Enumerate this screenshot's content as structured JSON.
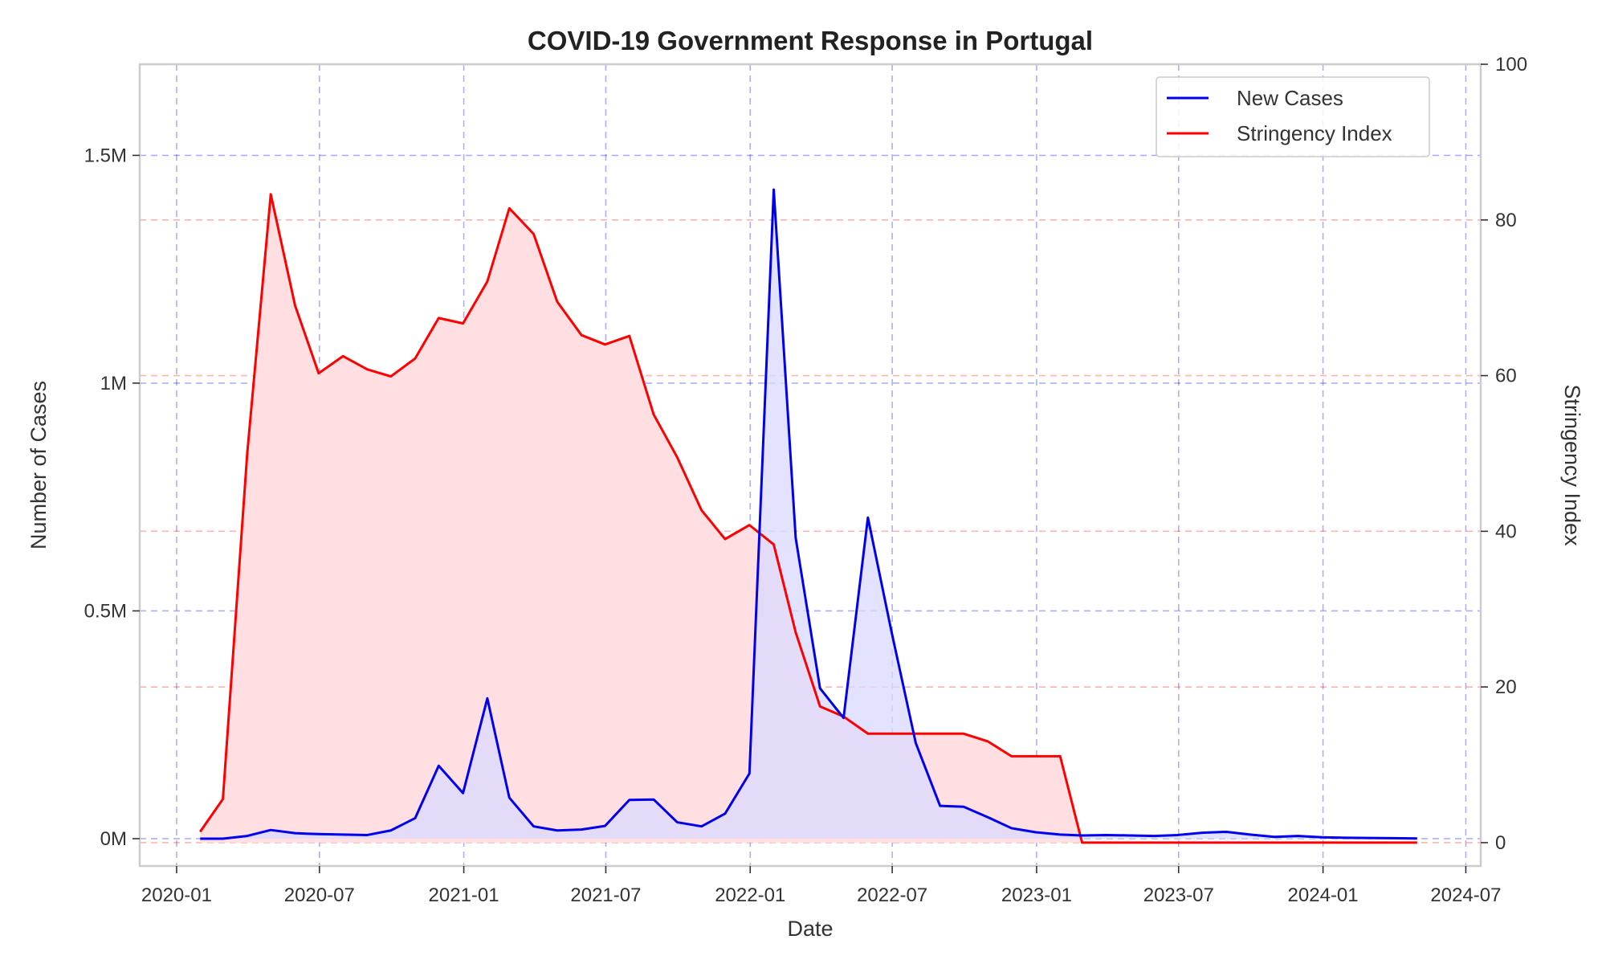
{
  "chart_data": {
    "type": "line",
    "title": "COVID-19 Government Response in Portugal",
    "xlabel": "Date",
    "ylabel": "Number of Cases",
    "y2label": "Stringency Index",
    "x_ticks": [
      "2020-01",
      "2020-07",
      "2021-01",
      "2021-07",
      "2022-01",
      "2022-07",
      "2023-01",
      "2023-07",
      "2024-01",
      "2024-07"
    ],
    "y_ticks": [
      "0M",
      "0.5M",
      "1M",
      "1.5M"
    ],
    "y_tick_values": [
      0,
      500000,
      1000000,
      1500000
    ],
    "y2_ticks": [
      "0",
      "20",
      "40",
      "60",
      "80",
      "100"
    ],
    "y2_tick_values": [
      0,
      20,
      40,
      60,
      80,
      100
    ],
    "xlim": [
      "2019-11-15",
      "2024-07-20"
    ],
    "ylim": [
      -60000,
      1700000
    ],
    "y2lim": [
      -3,
      100
    ],
    "grid": true,
    "legend": "top-right",
    "series": [
      {
        "name": "New Cases",
        "axis": "left",
        "color": "#0000ee",
        "fill": "#dadaff",
        "x": [
          "2020-01-31",
          "2020-02-29",
          "2020-03-31",
          "2020-04-30",
          "2020-05-31",
          "2020-06-30",
          "2020-07-31",
          "2020-08-31",
          "2020-09-30",
          "2020-10-31",
          "2020-11-30",
          "2020-12-31",
          "2021-01-31",
          "2021-02-28",
          "2021-03-31",
          "2021-04-30",
          "2021-05-31",
          "2021-06-30",
          "2021-07-31",
          "2021-08-31",
          "2021-09-30",
          "2021-10-31",
          "2021-11-30",
          "2021-12-31",
          "2022-01-31",
          "2022-02-28",
          "2022-03-31",
          "2022-04-30",
          "2022-05-31",
          "2022-06-30",
          "2022-07-31",
          "2022-08-31",
          "2022-09-30",
          "2022-10-31",
          "2022-11-30",
          "2022-12-31",
          "2023-01-31",
          "2023-02-28",
          "2023-03-31",
          "2023-04-30",
          "2023-05-31",
          "2023-06-30",
          "2023-07-31",
          "2023-08-31",
          "2023-09-30",
          "2023-10-31",
          "2023-11-30",
          "2023-12-31",
          "2024-01-31",
          "2024-02-29",
          "2024-03-31",
          "2024-04-30"
        ],
        "values": [
          0,
          0,
          6000,
          19000,
          12000,
          10000,
          9000,
          8000,
          18000,
          45000,
          160000,
          100000,
          308000,
          90000,
          27000,
          18000,
          20000,
          28000,
          85000,
          86000,
          36000,
          27000,
          55000,
          143000,
          1425000,
          660000,
          330000,
          265000,
          705000,
          455000,
          210000,
          72000,
          70000,
          47000,
          23000,
          14000,
          9000,
          7000,
          8000,
          7000,
          6000,
          8000,
          13000,
          15000,
          9000,
          4000,
          6000,
          3000,
          2000,
          1500,
          1000,
          500
        ]
      },
      {
        "name": "Stringency Index",
        "axis": "right",
        "color": "#ff0000",
        "fill": "#ffdfe1",
        "x": [
          "2020-01-31",
          "2020-02-29",
          "2020-03-31",
          "2020-04-30",
          "2020-05-31",
          "2020-06-30",
          "2020-07-31",
          "2020-08-31",
          "2020-09-30",
          "2020-10-31",
          "2020-11-30",
          "2020-12-31",
          "2021-01-31",
          "2021-02-28",
          "2021-03-31",
          "2021-04-30",
          "2021-05-31",
          "2021-06-30",
          "2021-07-31",
          "2021-08-31",
          "2021-09-30",
          "2021-10-31",
          "2021-11-30",
          "2021-12-31",
          "2022-01-31",
          "2022-02-28",
          "2022-03-31",
          "2022-04-30",
          "2022-05-31",
          "2022-06-30",
          "2022-07-31",
          "2022-08-31",
          "2022-09-30",
          "2022-10-31",
          "2022-11-30",
          "2022-12-31",
          "2023-01-31",
          "2023-02-28",
          "2023-03-31",
          "2023-04-30",
          "2023-05-31",
          "2023-06-30",
          "2023-07-31",
          "2023-08-31",
          "2023-09-30",
          "2023-10-31",
          "2023-11-30",
          "2023-12-31",
          "2024-01-31",
          "2024-02-29",
          "2024-03-31",
          "2024-04-30"
        ],
        "values": [
          1.4,
          5.6,
          50,
          83.3,
          69,
          60.3,
          62.5,
          60.8,
          59.9,
          62.2,
          67.4,
          66.7,
          72.1,
          81.5,
          78.2,
          69.5,
          65.2,
          64,
          65.1,
          55,
          49.5,
          42.7,
          39,
          40.8,
          38.3,
          27,
          17.5,
          16.2,
          14,
          14,
          14,
          14,
          14,
          13,
          11.1,
          11.1,
          11.1,
          0,
          0,
          0,
          0,
          0,
          0,
          0,
          0,
          0,
          0,
          0,
          0,
          0,
          0,
          0
        ]
      }
    ]
  }
}
